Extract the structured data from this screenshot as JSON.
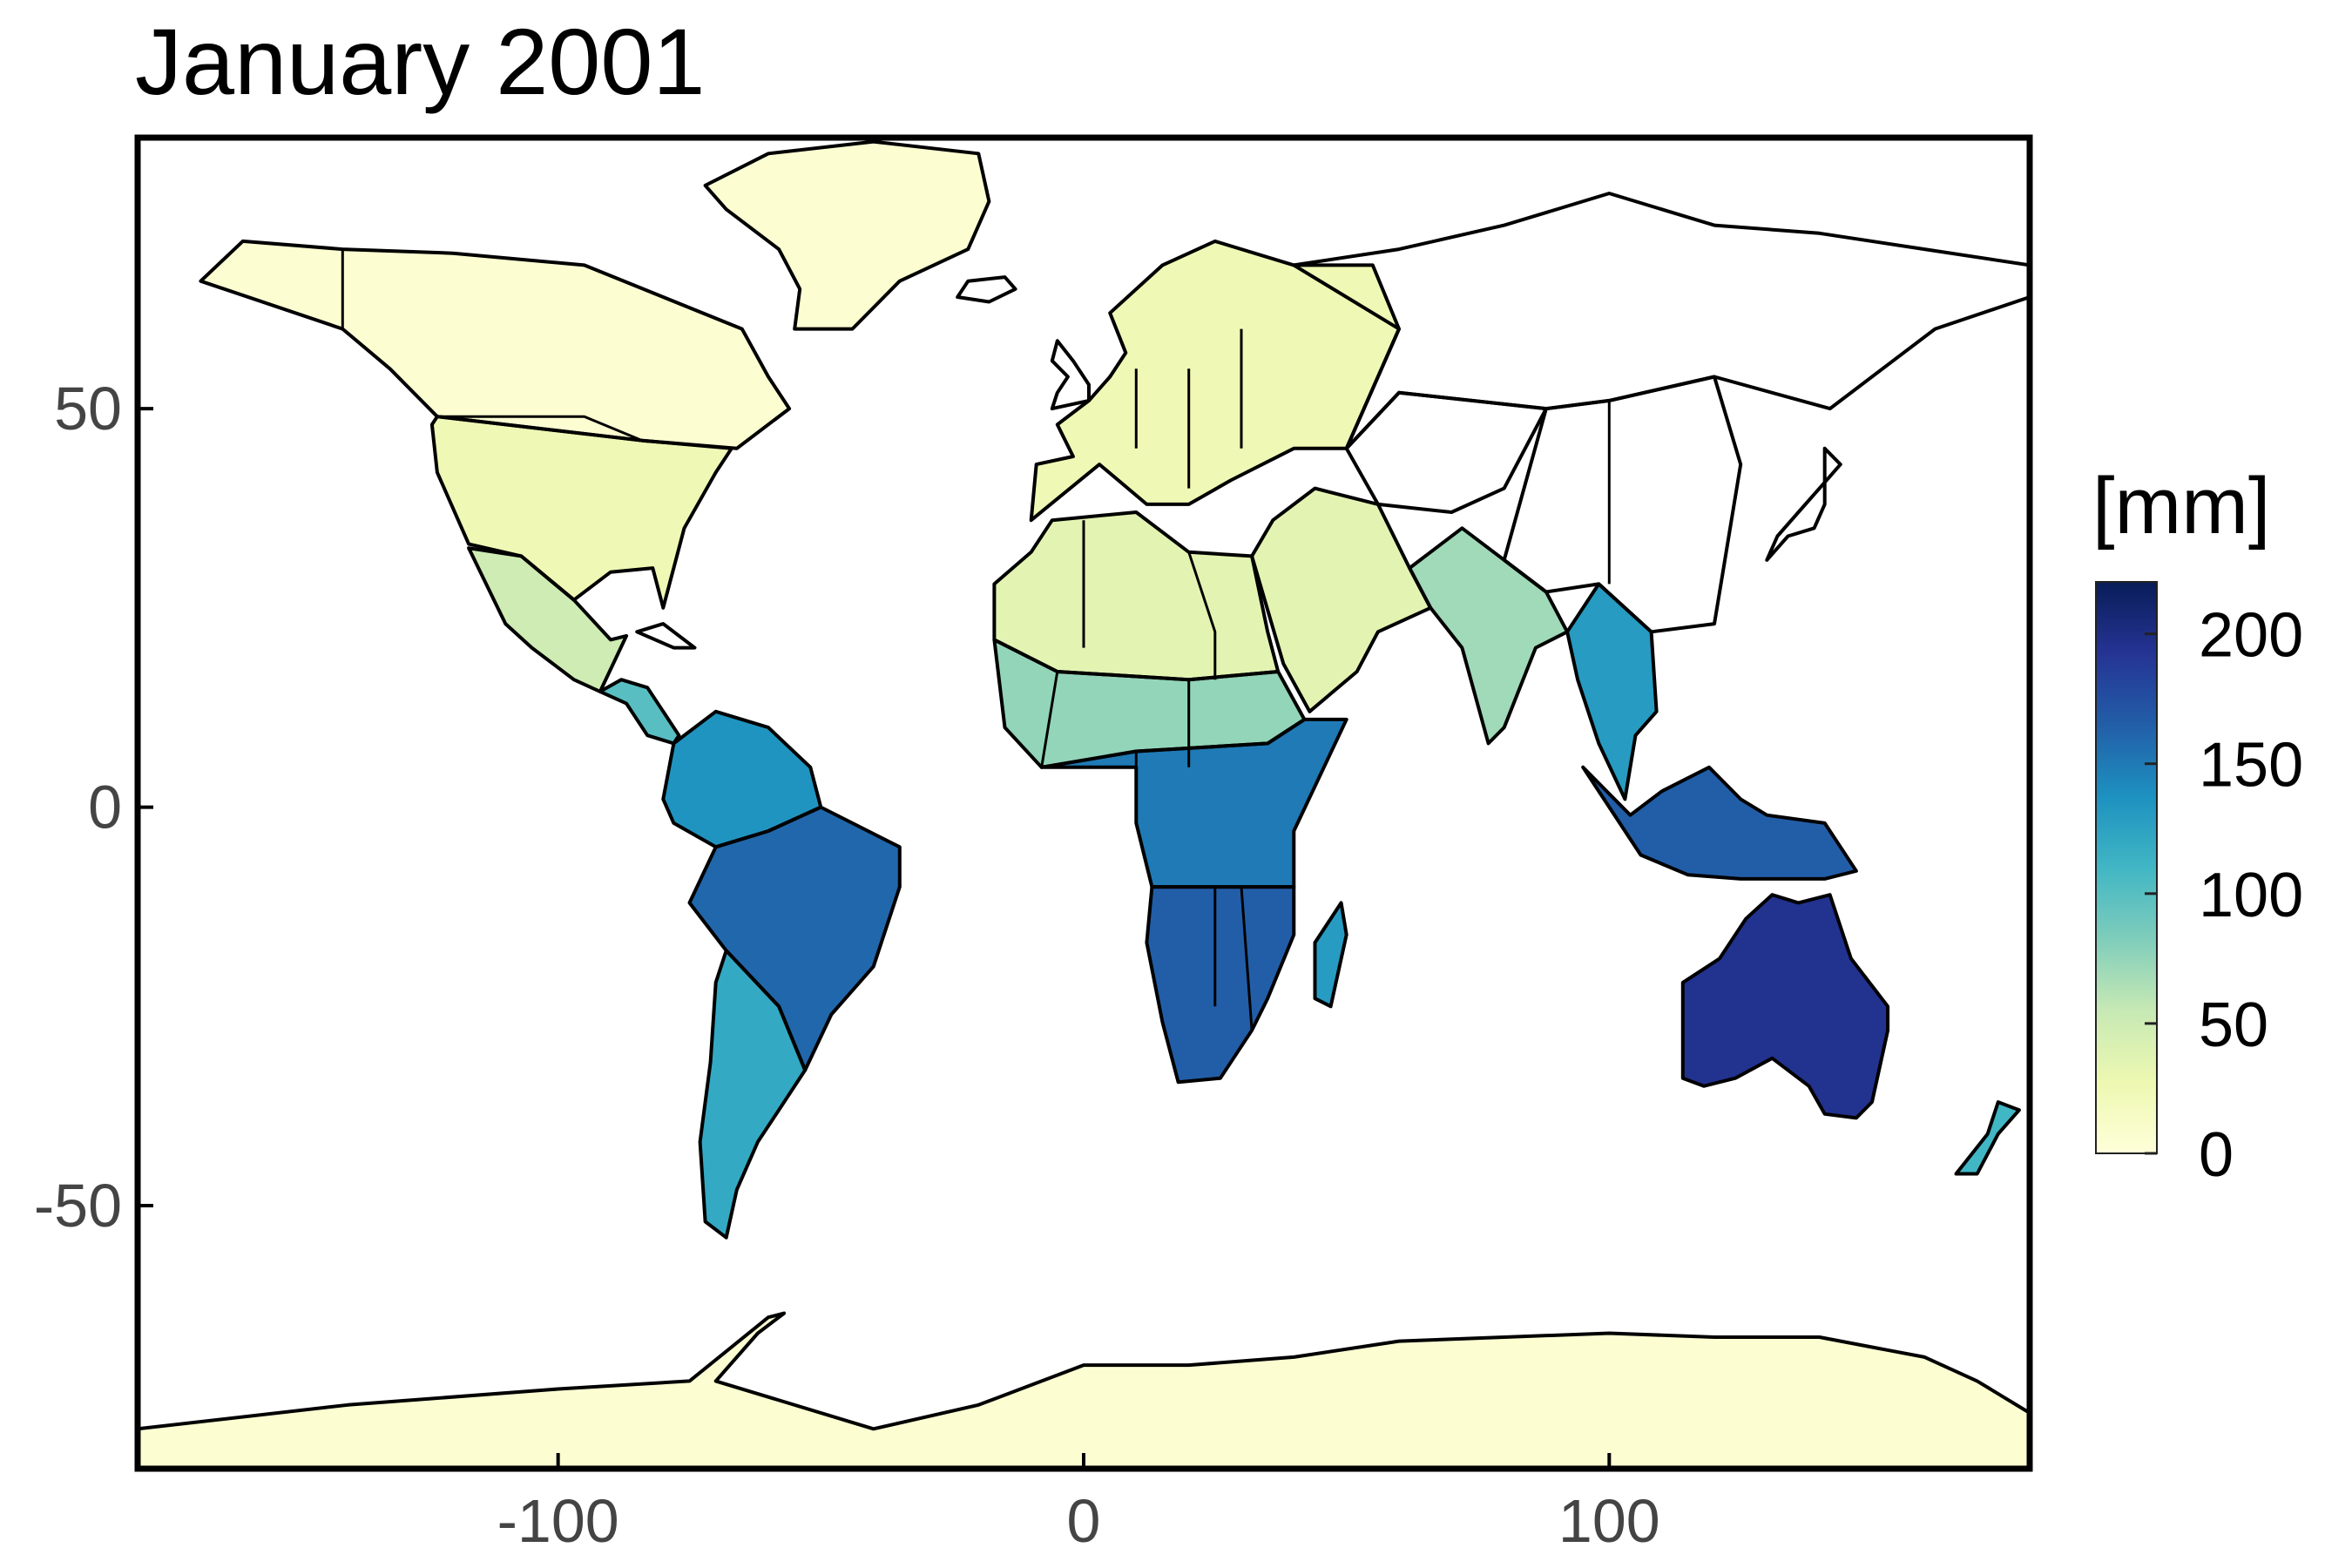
{
  "title": "January 2001",
  "colorbar": {
    "title": "[mm]",
    "range": [
      0,
      220
    ],
    "ticks": [
      {
        "value": 0,
        "label": "0"
      },
      {
        "value": 50,
        "label": "50"
      },
      {
        "value": 100,
        "label": "100"
      },
      {
        "value": 150,
        "label": "150"
      },
      {
        "value": 200,
        "label": "200"
      }
    ],
    "colormap": [
      "#ffffd9",
      "#edf8b1",
      "#c7e9b4",
      "#7fcdbb",
      "#41b6c4",
      "#1d91c0",
      "#225ea8",
      "#253494",
      "#081d58"
    ]
  },
  "axes": {
    "x_ticks": [
      {
        "value": -100,
        "label": "-100"
      },
      {
        "value": 0,
        "label": "0"
      },
      {
        "value": 100,
        "label": "100"
      }
    ],
    "y_ticks": [
      {
        "value": 50,
        "label": "50"
      },
      {
        "value": 0,
        "label": "0"
      },
      {
        "value": -50,
        "label": "-50"
      }
    ],
    "xlim": [
      -180,
      180
    ],
    "ylim": [
      -83,
      84
    ]
  },
  "chart_data": {
    "type": "heatmap",
    "title": "January 2001",
    "xlabel": "",
    "ylabel": "",
    "xlim": [
      -180,
      180
    ],
    "ylim": [
      -83,
      84
    ],
    "colorbar_label": "[mm]",
    "colorbar_range": [
      0,
      220
    ],
    "regions": [
      {
        "name": "Greenland",
        "value": 5
      },
      {
        "name": "Canada",
        "value": 5
      },
      {
        "name": "USA North",
        "value": 25
      },
      {
        "name": "Mexico",
        "value": 50
      },
      {
        "name": "Central America",
        "value": 100
      },
      {
        "name": "Northern South America",
        "value": 135
      },
      {
        "name": "Brazil",
        "value": 160
      },
      {
        "name": "Argentina",
        "value": 120
      },
      {
        "name": "Europe",
        "value": 25
      },
      {
        "name": "North Africa",
        "value": 35
      },
      {
        "name": "Sahel",
        "value": 75
      },
      {
        "name": "Central Africa",
        "value": 150
      },
      {
        "name": "Southern Africa",
        "value": 165
      },
      {
        "name": "Madagascar",
        "value": 130
      },
      {
        "name": "Middle East",
        "value": 35
      },
      {
        "name": "India",
        "value": 70
      },
      {
        "name": "Southeast Asia",
        "value": 130
      },
      {
        "name": "Indonesia",
        "value": 165
      },
      {
        "name": "Australia",
        "value": 195
      },
      {
        "name": "New Zealand",
        "value": 110
      },
      {
        "name": "Antarctica",
        "value": 5
      }
    ]
  }
}
